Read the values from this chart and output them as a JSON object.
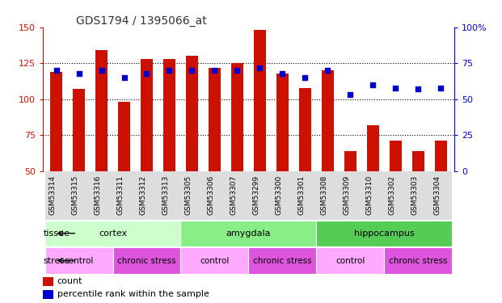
{
  "title": "GDS1794 / 1395066_at",
  "samples": [
    "GSM53314",
    "GSM53315",
    "GSM53316",
    "GSM53311",
    "GSM53312",
    "GSM53313",
    "GSM53305",
    "GSM53306",
    "GSM53307",
    "GSM53299",
    "GSM53300",
    "GSM53301",
    "GSM53308",
    "GSM53309",
    "GSM53310",
    "GSM53302",
    "GSM53303",
    "GSM53304"
  ],
  "counts": [
    119,
    107,
    134,
    98,
    128,
    128,
    130,
    122,
    125,
    148,
    118,
    108,
    120,
    64,
    82,
    71,
    64,
    71
  ],
  "percentiles": [
    70,
    68,
    70,
    65,
    68,
    70,
    70,
    70,
    70,
    72,
    68,
    65,
    70,
    53,
    60,
    58,
    57,
    58
  ],
  "ylim_left": [
    50,
    150
  ],
  "ylim_right": [
    0,
    100
  ],
  "yticks_left": [
    50,
    75,
    100,
    125,
    150
  ],
  "yticks_right": [
    0,
    25,
    50,
    75,
    100
  ],
  "bar_color": "#cc1100",
  "dot_color": "#0000cc",
  "background_color": "#ffffff",
  "tissue_groups": [
    {
      "label": "cortex",
      "start": 0,
      "end": 6,
      "color": "#ccffcc"
    },
    {
      "label": "amygdala",
      "start": 6,
      "end": 12,
      "color": "#88ee88"
    },
    {
      "label": "hippocampus",
      "start": 12,
      "end": 18,
      "color": "#55cc55"
    }
  ],
  "stress_groups": [
    {
      "label": "control",
      "start": 0,
      "end": 3,
      "color": "#ffaaff"
    },
    {
      "label": "chronic stress",
      "start": 3,
      "end": 6,
      "color": "#dd55dd"
    },
    {
      "label": "control",
      "start": 6,
      "end": 9,
      "color": "#ffaaff"
    },
    {
      "label": "chronic stress",
      "start": 9,
      "end": 12,
      "color": "#dd55dd"
    },
    {
      "label": "control",
      "start": 12,
      "end": 15,
      "color": "#ffaaff"
    },
    {
      "label": "chronic stress",
      "start": 15,
      "end": 18,
      "color": "#dd55dd"
    }
  ],
  "label_tissue": "tissue",
  "label_stress": "stress",
  "legend_count": "count",
  "legend_percentile": "percentile rank within the sample",
  "tick_label_color": "#cc1100",
  "right_tick_color": "#0000cc",
  "title_color": "#333333",
  "right_tick_labels": [
    "0",
    "25",
    "50",
    "75",
    "100%"
  ]
}
